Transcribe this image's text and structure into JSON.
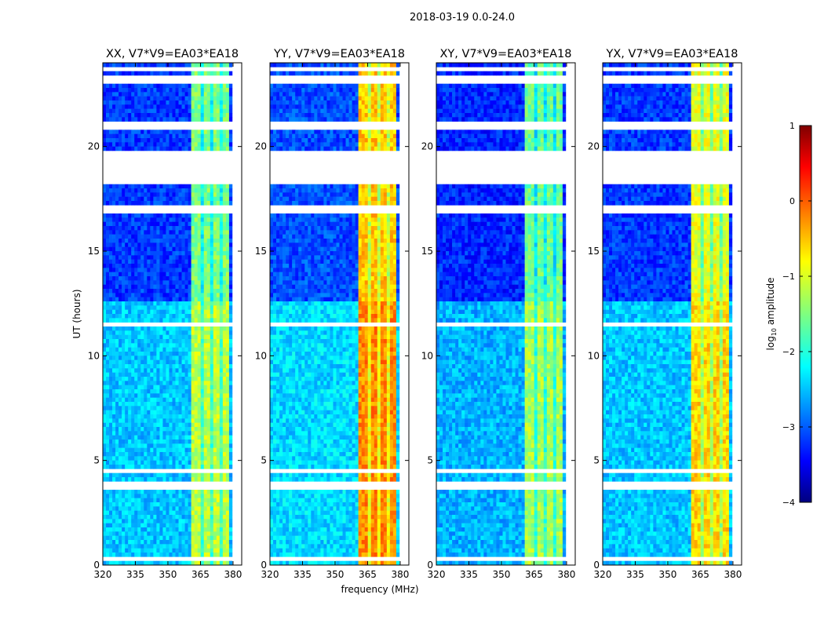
{
  "chart_data": {
    "type": "heatmap",
    "title": "2018-03-19 0.0-24.0",
    "xlabel": "frequency (MHz)",
    "ylabel": "UT (hours)",
    "xlim": [
      320,
      384
    ],
    "ylim": [
      0,
      24
    ],
    "xticks": [
      320,
      335,
      350,
      365,
      380
    ],
    "yticks": [
      0,
      5,
      10,
      15,
      20
    ],
    "colorbar": {
      "label": "log10 amplitude",
      "label_main": "log",
      "label_sub": "10",
      "label_rest": " amplitude",
      "range": [
        -4,
        1
      ],
      "ticks": [
        1,
        0,
        -1,
        -2,
        -3,
        -4
      ],
      "tick_labels": [
        "1",
        "0",
        "−1",
        "−2",
        "−3",
        "−4"
      ],
      "colormap": "jet"
    },
    "panels": [
      {
        "title": "XX, V7*V9=EA03*EA18",
        "background_upper": -3.1,
        "background_lower": -2.4,
        "rfi_level": -1.3
      },
      {
        "title": "YY, V7*V9=EA03*EA18",
        "background_upper": -3.0,
        "background_lower": -2.3,
        "rfi_level": -0.4
      },
      {
        "title": "XY, V7*V9=EA03*EA18",
        "background_upper": -3.2,
        "background_lower": -2.5,
        "rfi_level": -1.4
      },
      {
        "title": "YX, V7*V9=EA03*EA18",
        "background_upper": -3.1,
        "background_lower": -2.4,
        "rfi_level": -0.8
      }
    ],
    "background_transition_ut": 12.6,
    "rfi_freq_range": [
      361,
      378
    ],
    "rfi_gaps_mhz": [
      365.5,
      370.5,
      375
    ],
    "flagged_ut_ranges": [
      [
        18.25,
        19.85
      ],
      [
        20.85,
        21.15
      ],
      [
        23.0,
        23.35
      ],
      [
        16.8,
        17.15
      ],
      [
        3.55,
        4.05
      ],
      [
        23.6,
        23.75
      ],
      [
        11.4,
        11.6
      ],
      [
        2.9,
        3.0
      ],
      [
        4.5,
        4.6
      ],
      [
        0.3,
        0.4
      ]
    ],
    "flagged_freq_range": [
      380,
      384
    ]
  }
}
